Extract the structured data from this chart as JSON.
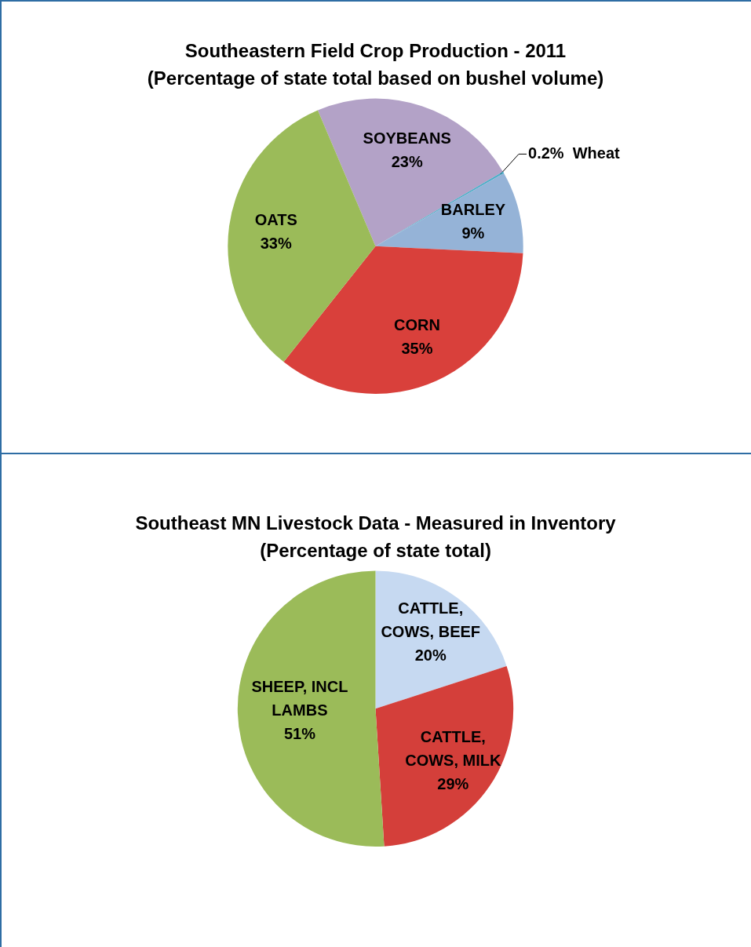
{
  "chart_data": [
    {
      "type": "pie",
      "title": "Southeastern Field Crop Production - 2011",
      "subtitle": "(Percentage of state total based on bushel volume)",
      "categories": [
        "SOYBEANS",
        "Wheat",
        "BARLEY",
        "CORN",
        "OATS"
      ],
      "values": [
        23,
        0.2,
        9,
        35,
        33
      ],
      "value_labels": [
        "23%",
        "0.2%",
        "9%",
        "35%",
        "33%"
      ],
      "colors": [
        "#b3a2c7",
        "#4bacc6",
        "#95b3d7",
        "#d9403b",
        "#9bbb59"
      ],
      "legend": false
    },
    {
      "type": "pie",
      "title": "Southeast MN Livestock Data - Measured in Inventory",
      "subtitle": "(Percentage of state total)",
      "categories": [
        "CATTLE, COWS, BEEF",
        "CATTLE, COWS, MILK",
        "SHEEP, INCL LAMBS"
      ],
      "values": [
        20,
        29,
        51
      ],
      "value_labels": [
        "20%",
        "29%",
        "51%"
      ],
      "colors": [
        "#c6d9f1",
        "#d43f3a",
        "#9bbb59"
      ],
      "legend": false
    }
  ]
}
